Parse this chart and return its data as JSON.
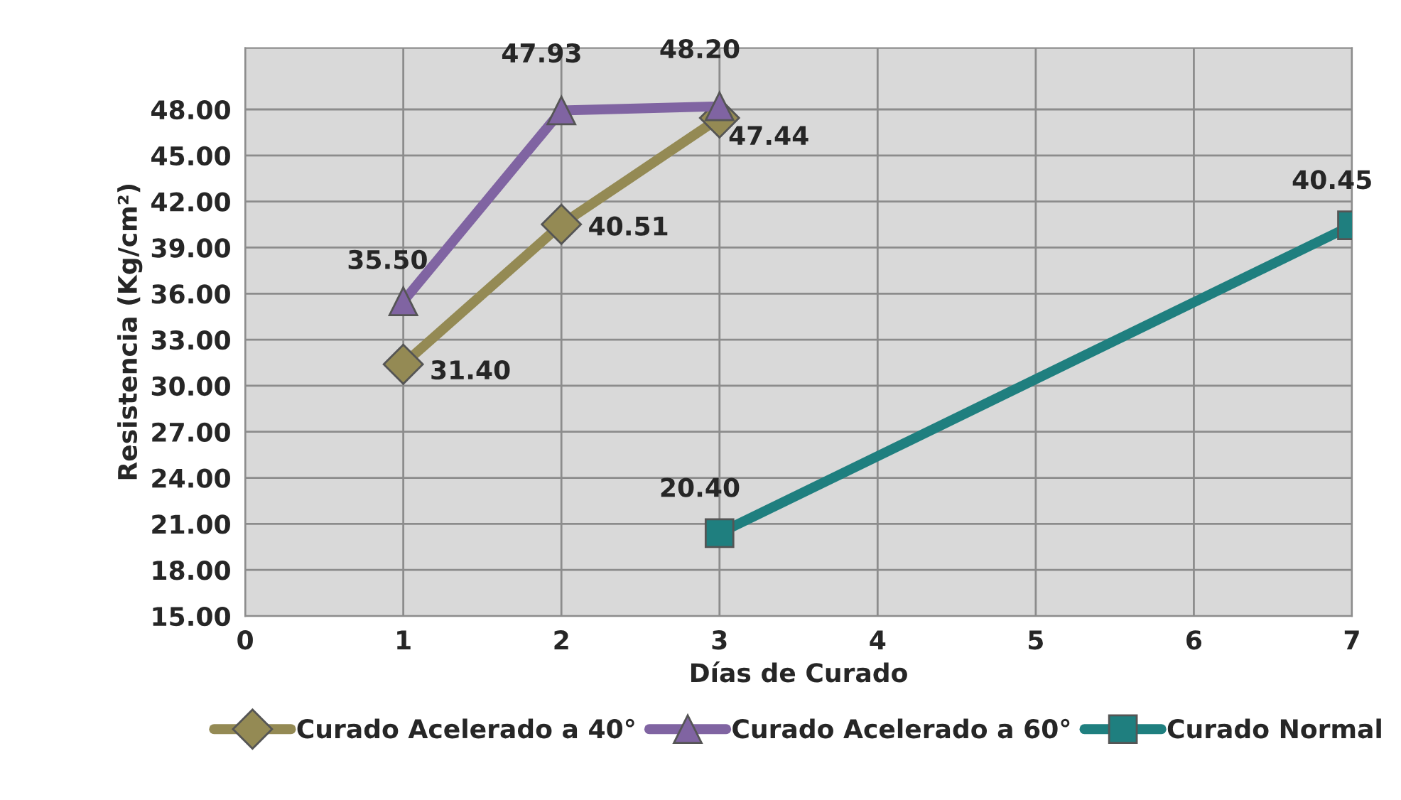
{
  "chart_data": {
    "type": "line",
    "xlabel": "Días de Curado",
    "ylabel": "Resistencia (Kg/cm²)",
    "xlim": [
      0,
      7
    ],
    "xticks": [
      0,
      1,
      2,
      3,
      4,
      5,
      6,
      7
    ],
    "ylim": [
      15,
      52
    ],
    "yticks": [
      {
        "value": 15,
        "label": "15.00"
      },
      {
        "value": 18,
        "label": "18.00"
      },
      {
        "value": 21,
        "label": "21.00"
      },
      {
        "value": 24,
        "label": "24.00"
      },
      {
        "value": 27,
        "label": "27.00"
      },
      {
        "value": 30,
        "label": "30.00"
      },
      {
        "value": 33,
        "label": "33.00"
      },
      {
        "value": 36,
        "label": "36.00"
      },
      {
        "value": 39,
        "label": "39.00"
      },
      {
        "value": 42,
        "label": "42.00"
      },
      {
        "value": 45,
        "label": "45.00"
      },
      {
        "value": 48,
        "label": "48.00"
      }
    ],
    "grid": true,
    "legend": "bottom",
    "data_labels": true,
    "series": [
      {
        "name": "Curado Acelerado a 40°",
        "color": "#948a54",
        "marker": "diamond",
        "x": [
          1,
          2,
          3
        ],
        "values": [
          31.4,
          40.51,
          47.44
        ],
        "value_labels": [
          "31.40",
          "40.51",
          "47.44"
        ]
      },
      {
        "name": "Curado Acelerado a 60°",
        "color": "#8064a2",
        "marker": "triangle",
        "x": [
          1,
          2,
          3
        ],
        "values": [
          35.5,
          47.93,
          48.2
        ],
        "value_labels": [
          "35.50",
          "47.93",
          "48.20"
        ]
      },
      {
        "name": "Curado Normal",
        "color": "#1f7f7f",
        "marker": "square",
        "x": [
          3,
          7
        ],
        "values": [
          20.4,
          40.45
        ],
        "value_labels": [
          "20.40",
          "40.45"
        ]
      }
    ]
  }
}
